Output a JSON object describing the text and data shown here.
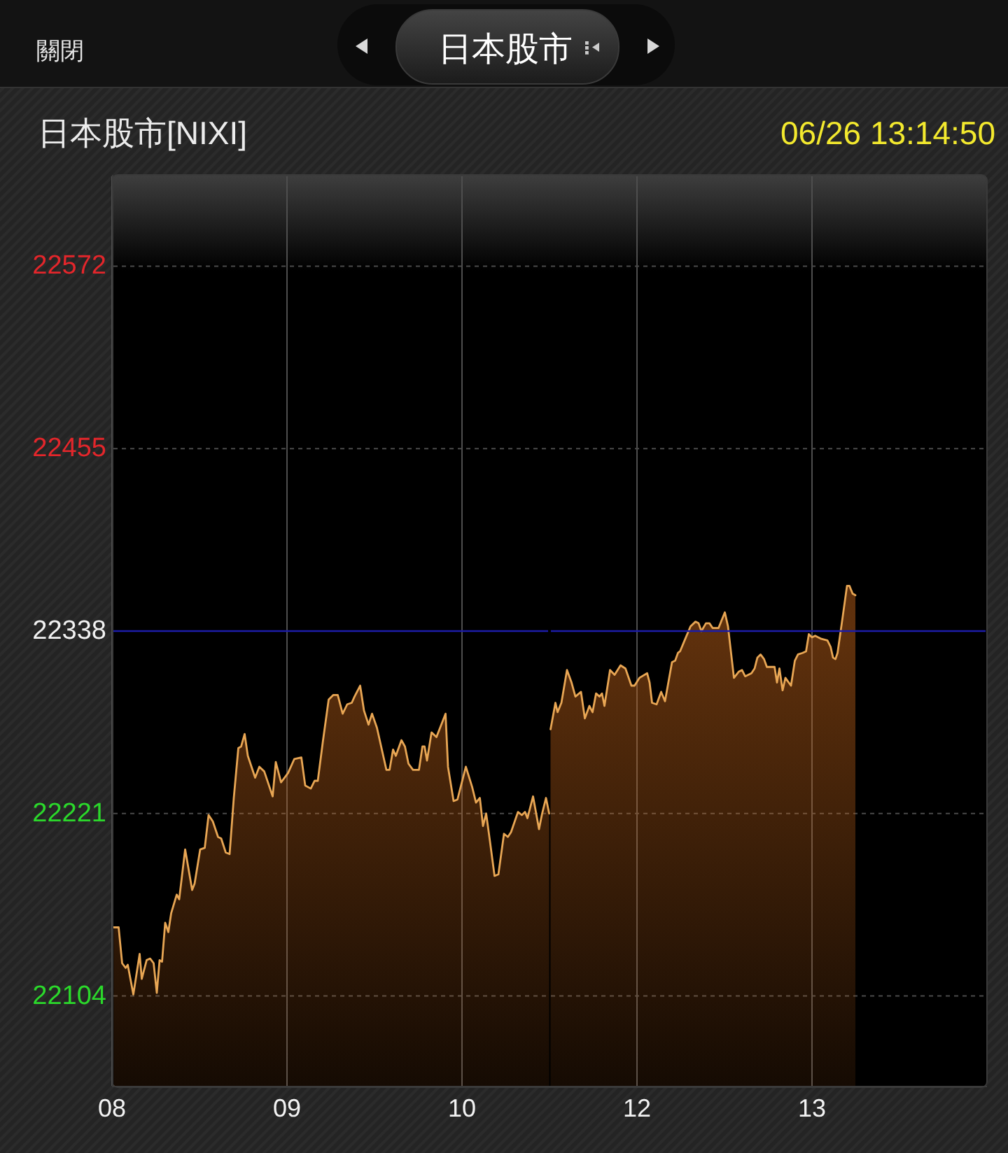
{
  "chart_data": [
    {
      "type": "area",
      "title": "日本股市[NIXI]",
      "annotations": [
        "關閉",
        "日本股市"
      ],
      "series": [
        {
          "color": "#e8a654",
          "x": [
            8.01,
            8.038,
            8.058,
            8.078,
            8.09,
            8.122,
            8.158,
            8.17,
            8.198,
            8.218,
            8.238,
            8.256,
            8.272,
            8.286,
            8.304,
            8.322,
            8.338,
            8.37,
            8.384,
            8.418,
            8.458,
            8.472,
            8.504,
            8.53,
            8.552,
            8.576,
            8.606,
            8.624,
            8.65,
            8.672,
            8.696,
            8.722,
            8.738,
            8.758,
            8.776,
            8.818,
            8.842,
            8.87,
            8.918,
            8.936,
            8.966,
            9.006,
            9.042,
            9.082,
            9.104,
            9.136,
            9.158,
            9.176,
            9.206,
            9.238,
            9.264,
            9.29,
            9.318,
            9.344,
            9.37,
            9.386,
            9.418,
            9.44,
            9.466,
            9.486,
            9.514,
            9.568,
            9.586,
            9.606,
            9.622,
            9.654,
            9.674,
            9.694,
            9.72,
            9.754,
            9.774,
            9.786,
            9.8,
            9.826,
            9.854,
            9.906,
            9.92,
            9.952,
            9.974,
            10.022,
            10.058,
            10.08,
            10.102,
            10.12,
            10.138,
            10.16,
            10.186,
            10.208,
            10.24,
            10.262,
            10.28,
            10.32,
            10.342,
            10.36,
            10.374,
            10.406,
            10.44,
            10.458,
            10.48,
            10.498
          ],
          "values": [
            22148,
            22148,
            22125,
            22122,
            22124,
            22105,
            22131,
            22115,
            22127,
            22128,
            22125,
            22106,
            22127,
            22126,
            22151,
            22145,
            22157,
            22169,
            22166,
            22198,
            22172,
            22176,
            22198,
            22199,
            22220,
            22216,
            22206,
            22205,
            22196,
            22195,
            22231,
            22263,
            22264,
            22272,
            22258,
            22244,
            22251,
            22248,
            22232,
            22254,
            22241,
            22247,
            22256,
            22257,
            22239,
            22237,
            22242,
            22242,
            22268,
            22294,
            22297,
            22297,
            22285,
            22291,
            22292,
            22296,
            22303,
            22287,
            22278,
            22285,
            22276,
            22249,
            22249,
            22262,
            22258,
            22268,
            22264,
            22253,
            22249,
            22249,
            22264,
            22264,
            22255,
            22273,
            22270,
            22285,
            22251,
            22229,
            22230,
            22251,
            22238,
            22228,
            22231,
            22213,
            22221,
            22203,
            22181,
            22182,
            22208,
            22206,
            22209,
            22222,
            22220,
            22222,
            22218,
            22232,
            22211,
            22221,
            22231,
            22221
          ]
        }
      ],
      "xlim": [
        8,
        10.5
      ],
      "xticks": [
        {
          "value": 8,
          "label": "08"
        },
        {
          "value": 9,
          "label": "09"
        },
        {
          "value": 10,
          "label": "10"
        }
      ],
      "ylim": [
        22045.5,
        22630.5
      ],
      "yticks": [
        22104,
        22221,
        22338,
        22455,
        22572
      ],
      "ref_lines": [
        {
          "axis": "y",
          "value": 22338,
          "color": "#1c1ca8"
        }
      ],
      "grid": true
    },
    {
      "type": "area",
      "subtitle": "06/26 13:14:50",
      "series": [
        {
          "color": "#e8a654",
          "x": [
            11.506,
            11.534,
            11.546,
            11.568,
            11.6,
            11.626,
            11.648,
            11.68,
            11.702,
            11.728,
            11.746,
            11.766,
            11.786,
            11.8,
            11.814,
            11.846,
            11.872,
            11.906,
            11.934,
            11.968,
            11.986,
            12.014,
            12.058,
            12.072,
            12.086,
            12.112,
            12.138,
            12.16,
            12.2,
            12.218,
            12.234,
            12.246,
            12.272,
            12.306,
            12.334,
            12.352,
            12.368,
            12.394,
            12.414,
            12.432,
            12.466,
            12.502,
            12.52,
            12.554,
            12.582,
            12.6,
            12.618,
            12.654,
            12.672,
            12.688,
            12.706,
            12.726,
            12.742,
            12.786,
            12.8,
            12.814,
            12.832,
            12.848,
            12.88,
            12.902,
            12.92,
            12.946,
            12.966,
            12.982,
            13.0,
            13.018,
            13.054,
            13.088,
            13.106,
            13.12,
            13.134,
            13.146,
            13.174,
            13.2,
            13.214,
            13.232,
            13.248
          ],
          "values": [
            22275,
            22292,
            22286,
            22292,
            22313,
            22305,
            22296,
            22299,
            22282,
            22290,
            22286,
            22298,
            22296,
            22298,
            22290,
            22313,
            22310,
            22316,
            22314,
            22303,
            22303,
            22308,
            22311,
            22305,
            22292,
            22291,
            22299,
            22293,
            22318,
            22319,
            22324,
            22325,
            22332,
            22341,
            22344,
            22343,
            22338,
            22343,
            22343,
            22340,
            22340,
            22350,
            22341,
            22308,
            22312,
            22313,
            22309,
            22311,
            22314,
            22321,
            22323,
            22320,
            22315,
            22315,
            22305,
            22314,
            22300,
            22308,
            22303,
            22319,
            22323,
            22324,
            22325,
            22336,
            22334,
            22335,
            22333,
            22332,
            22328,
            22321,
            22320,
            22324,
            22346,
            22367,
            22367,
            22362,
            22361
          ]
        }
      ],
      "xlim": [
        11.5,
        14
      ],
      "xticks": [
        {
          "value": 12,
          "label": "12"
        },
        {
          "value": 13,
          "label": "13"
        }
      ],
      "ylim": [
        22045.5,
        22630.5
      ],
      "yticks": [
        22104,
        22221,
        22338,
        22455,
        22572
      ],
      "ref_lines": [
        {
          "axis": "y",
          "value": 22338,
          "color": "#1c1ca8"
        }
      ],
      "grid": true,
      "tick_labels": "x"
    }
  ]
}
